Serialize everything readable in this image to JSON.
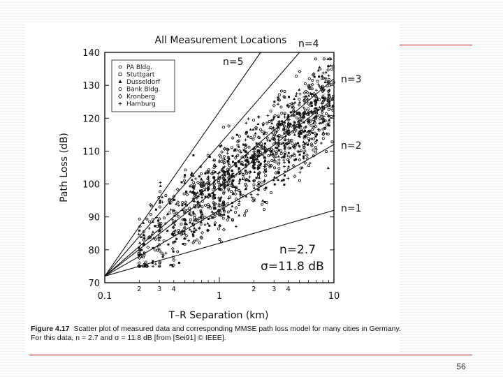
{
  "page": {
    "number": "56"
  },
  "caption": {
    "label": "Figure 4.17",
    "text": "Scatter plot of measured data and corresponding MMSE path loss model for many cities in Germany. For this data, n = 2.7 and σ = 11.8 dB [from [Sei91] © IEEE]."
  },
  "chart_data": {
    "type": "scatter",
    "title": "All Measurement Locations",
    "xlabel": "T–R Separation (km)",
    "ylabel": "Path Loss (dB)",
    "x_scale": "log",
    "xlim": [
      0.1,
      10
    ],
    "ylim": [
      70,
      140
    ],
    "x_major_tick_labels": [
      "0.1",
      "1",
      "10"
    ],
    "x_minor_tick_labels": [
      "2",
      "3",
      "4",
      "2",
      "3",
      "4"
    ],
    "y_tick_labels": [
      "70",
      "80",
      "90",
      "100",
      "110",
      "120",
      "130",
      "140"
    ],
    "legend": {
      "placement": "top-left",
      "entries": [
        "PA Bldg.",
        "Stuttgart",
        "Dusseldorf",
        "Bank Bldg.",
        "Kronberg",
        "Hamburg"
      ]
    },
    "reference_lines": [
      {
        "label": "n=1",
        "exponent": 1,
        "y_at_0_1km": 72,
        "y_at_10km": 92
      },
      {
        "label": "n=2",
        "exponent": 2,
        "y_at_0_1km": 72,
        "y_at_10km": 112
      },
      {
        "label": "n=3",
        "exponent": 3,
        "y_at_0_1km": 72,
        "y_at_10km": 132
      },
      {
        "label": "n=4",
        "exponent": 4,
        "y_at_0_1km": 72,
        "y_at_1km": 112
      },
      {
        "label": "n=5",
        "exponent": 5,
        "y_at_0_1km": 72,
        "y_at_1km": 122
      }
    ],
    "best_fit": {
      "label": "n=2.7",
      "exponent": 2.7,
      "y_at_0_1km": 72,
      "y_at_10km": 126
    },
    "annotations": [
      "n=2.7",
      "σ=11.8 dB"
    ],
    "scatter_clusters": [
      {
        "x_min": 0.2,
        "x_max": 10,
        "y_min": 75,
        "y_max": 138,
        "approx_points": 1400
      }
    ],
    "colors": {
      "ink": "#111111"
    }
  }
}
